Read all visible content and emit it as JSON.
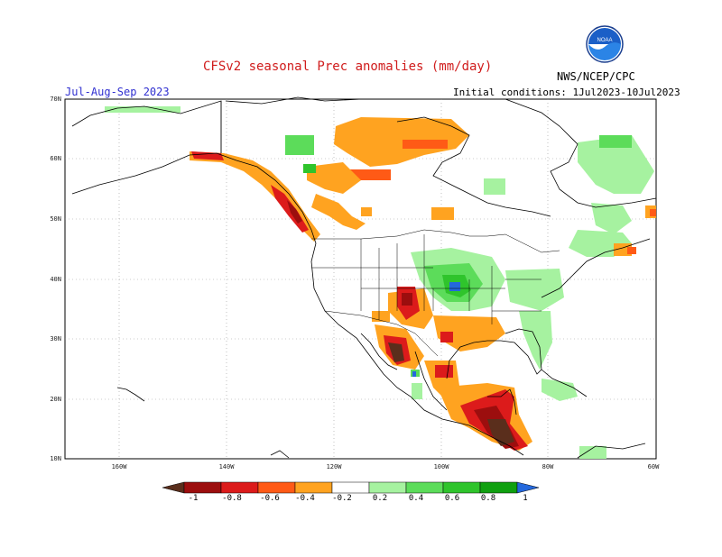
{
  "title": "CFSv2 seasonal Prec anomalies (mm/day)",
  "season": "Jul-Aug-Sep 2023",
  "initial_conditions": "Initial conditions: 1Jul2023-10Jul2023",
  "agency": "NWS/NCEP/CPC",
  "logo_text": "NOAA",
  "lat_labels": [
    "70N",
    "60N",
    "50N",
    "40N",
    "30N",
    "20N",
    "10N"
  ],
  "lon_labels": [
    "160W",
    "140W",
    "120W",
    "100W",
    "80W",
    "60W"
  ],
  "colorbar": {
    "labels": [
      "-1",
      "-0.8",
      "-0.6",
      "-0.4",
      "-0.2",
      "0.2",
      "0.4",
      "0.6",
      "0.8",
      "1"
    ],
    "colors": [
      "#5a2e1c",
      "#9c0e0e",
      "#dc1b1b",
      "#ff5a16",
      "#ffa320",
      "#ffffff",
      "#a6f2a0",
      "#5cdc5a",
      "#2fc42c",
      "#10a010",
      "#2468dc"
    ]
  }
}
